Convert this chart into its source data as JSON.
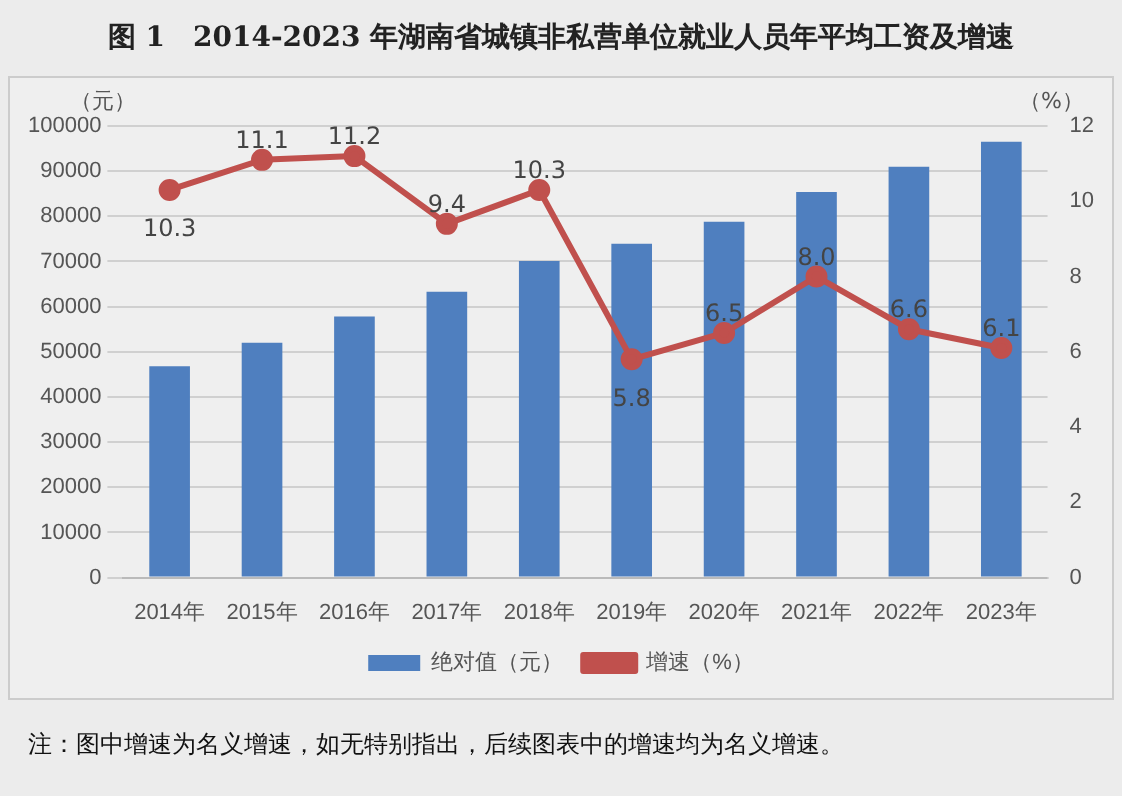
{
  "chart_data": {
    "type": "bar",
    "title": "图 1　2014-2023 年湖南省城镇非私营单位就业人员年平均工资及增速",
    "ylabel": "（元）",
    "y2label": "（%）",
    "categories": [
      "2014年",
      "2015年",
      "2016年",
      "2017年",
      "2018年",
      "2019年",
      "2020年",
      "2021年",
      "2022年",
      "2023年"
    ],
    "series": [
      {
        "name": "绝对值（元）",
        "color": "#4f7fbf",
        "values": [
          46800,
          52000,
          57800,
          63300,
          70100,
          73900,
          78800,
          85400,
          91000,
          96500
        ]
      },
      {
        "name": "增速（%）",
        "type": "line",
        "axis": "y2",
        "color": "#c0504d",
        "marker": "circle",
        "values": [
          10.3,
          11.1,
          11.2,
          9.4,
          10.3,
          5.8,
          6.5,
          8.0,
          6.6,
          6.1
        ],
        "value_labels": [
          "10.3",
          "11.1",
          "11.2",
          "9.4",
          "10.3",
          "5.8",
          "6.5",
          "8.0",
          "6.6",
          "6.1"
        ]
      }
    ],
    "ylim": [
      0,
      100000
    ],
    "yticks": [
      0,
      10000,
      20000,
      30000,
      40000,
      50000,
      60000,
      70000,
      80000,
      90000,
      100000
    ],
    "y2lim": [
      0,
      12
    ],
    "y2ticks": [
      0,
      2,
      4,
      6,
      8,
      10,
      12
    ],
    "grid": "y",
    "legend": "bottom",
    "annotations": [
      "注：图中增速为名义增速，如无特别指出，后续图表中的增速均为名义增速。"
    ]
  }
}
